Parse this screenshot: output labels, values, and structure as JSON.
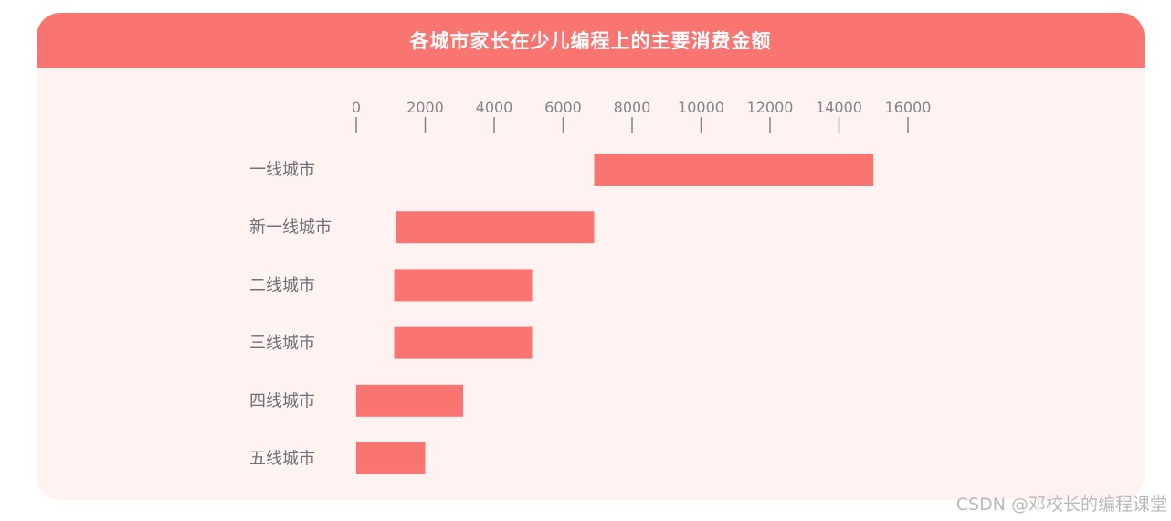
{
  "chart_data": {
    "type": "bar",
    "orientation": "horizontal-floating",
    "title": "各城市家长在少儿编程上的主要消费金额",
    "xlabel": "",
    "ylabel": "",
    "xlim": [
      0,
      16000
    ],
    "ticks": [
      "0",
      "2000",
      "4000",
      "6000",
      "8000",
      "10000",
      "12000",
      "14000",
      "16000"
    ],
    "categories": [
      "一线城市",
      "新一线城市",
      "二线城市",
      "三线城市",
      "四线城市",
      "五线城市"
    ],
    "ranges": [
      [
        6900,
        15000
      ],
      [
        1150,
        6900
      ],
      [
        1100,
        5100
      ],
      [
        1100,
        5100
      ],
      [
        0,
        3100
      ],
      [
        0,
        2000
      ]
    ],
    "grid": false,
    "legend": "none",
    "bar_color": "#f87572"
  },
  "watermark": "CSDN @邓校长的编程课堂"
}
